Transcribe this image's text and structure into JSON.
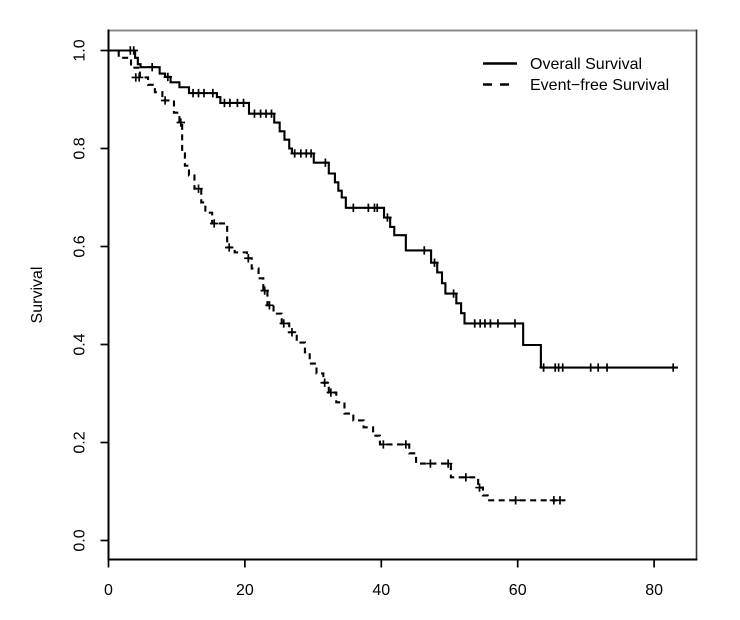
{
  "figure": {
    "background": "#ffffff",
    "ylabel": "Survival",
    "legend": {
      "position": "top-right",
      "items": [
        {
          "label": "Overall Survival",
          "style": "solid"
        },
        {
          "label": "Event−free Survival",
          "style": "dashed"
        }
      ]
    },
    "colors": {
      "curve": "#000000",
      "axis": "#000000",
      "box_top": "#8c8c8c",
      "box_right": "#333333",
      "background": "#ffffff"
    }
  },
  "chart_data": {
    "type": "line",
    "subtype": "kaplan-meier-step",
    "title": "",
    "xlabel": "",
    "ylabel": "Survival",
    "xlim": [
      0,
      86
    ],
    "ylim": [
      -0.04,
      1.04
    ],
    "grid": false,
    "legend_position": "top-right",
    "x_ticks": [
      {
        "label": "0",
        "value": 0
      },
      {
        "label": "20",
        "value": 20
      },
      {
        "label": "40",
        "value": 40
      },
      {
        "label": "60",
        "value": 60
      },
      {
        "label": "80",
        "value": 80
      }
    ],
    "y_ticks": [
      {
        "label": "0.0",
        "value": 0.0
      },
      {
        "label": "0.2",
        "value": 0.2
      },
      {
        "label": "0.4",
        "value": 0.4
      },
      {
        "label": "0.6",
        "value": 0.6
      },
      {
        "label": "0.8",
        "value": 0.8
      },
      {
        "label": "1.0",
        "value": 1.0
      }
    ],
    "series": [
      {
        "name": "Overall Survival",
        "line": "solid",
        "color": "#000000",
        "end_time": 83.5,
        "steps": [
          [
            0,
            1.0
          ],
          [
            3.9,
            0.985
          ],
          [
            4.3,
            0.972
          ],
          [
            4.7,
            0.966
          ],
          [
            7.5,
            0.953
          ],
          [
            8.3,
            0.946
          ],
          [
            9.1,
            0.935
          ],
          [
            10.4,
            0.925
          ],
          [
            11.8,
            0.913
          ],
          [
            15.9,
            0.905
          ],
          [
            16.4,
            0.893
          ],
          [
            20.6,
            0.871
          ],
          [
            24.3,
            0.853
          ],
          [
            25.1,
            0.835
          ],
          [
            25.8,
            0.818
          ],
          [
            26.5,
            0.8
          ],
          [
            26.9,
            0.79
          ],
          [
            30.1,
            0.771
          ],
          [
            32.3,
            0.749
          ],
          [
            33.2,
            0.731
          ],
          [
            33.7,
            0.714
          ],
          [
            34.2,
            0.7
          ],
          [
            34.8,
            0.679
          ],
          [
            40.4,
            0.659
          ],
          [
            41.3,
            0.64
          ],
          [
            41.9,
            0.623
          ],
          [
            43.6,
            0.592
          ],
          [
            47.3,
            0.567
          ],
          [
            48.2,
            0.547
          ],
          [
            48.9,
            0.525
          ],
          [
            49.4,
            0.504
          ],
          [
            51.0,
            0.484
          ],
          [
            51.7,
            0.464
          ],
          [
            52.2,
            0.443
          ],
          [
            60.8,
            0.399
          ],
          [
            63.4,
            0.353
          ]
        ],
        "censor_marks": [
          [
            3.2,
            1.0
          ],
          [
            3.7,
            1.0
          ],
          [
            6.4,
            0.966
          ],
          [
            8.7,
            0.946
          ],
          [
            12.4,
            0.913
          ],
          [
            13.2,
            0.913
          ],
          [
            14.0,
            0.913
          ],
          [
            15.3,
            0.913
          ],
          [
            17.0,
            0.893
          ],
          [
            17.8,
            0.893
          ],
          [
            18.9,
            0.893
          ],
          [
            19.8,
            0.893
          ],
          [
            21.4,
            0.871
          ],
          [
            22.3,
            0.871
          ],
          [
            23.1,
            0.871
          ],
          [
            23.9,
            0.871
          ],
          [
            27.3,
            0.79
          ],
          [
            28.2,
            0.79
          ],
          [
            29.0,
            0.79
          ],
          [
            29.7,
            0.79
          ],
          [
            31.8,
            0.771
          ],
          [
            35.9,
            0.679
          ],
          [
            38.1,
            0.679
          ],
          [
            39.0,
            0.679
          ],
          [
            39.4,
            0.679
          ],
          [
            40.9,
            0.659
          ],
          [
            46.3,
            0.592
          ],
          [
            47.8,
            0.567
          ],
          [
            50.6,
            0.504
          ],
          [
            53.7,
            0.443
          ],
          [
            54.5,
            0.443
          ],
          [
            55.2,
            0.443
          ],
          [
            56.0,
            0.443
          ],
          [
            57.1,
            0.443
          ],
          [
            59.6,
            0.443
          ],
          [
            63.8,
            0.353
          ],
          [
            65.5,
            0.353
          ],
          [
            66.0,
            0.353
          ],
          [
            66.6,
            0.353
          ],
          [
            70.7,
            0.353
          ],
          [
            71.8,
            0.353
          ],
          [
            73.1,
            0.353
          ],
          [
            82.8,
            0.353
          ]
        ]
      },
      {
        "name": "Event−free Survival",
        "line": "dashed",
        "color": "#000000",
        "end_time": 67,
        "steps": [
          [
            0,
            1.0
          ],
          [
            1.5,
            0.985
          ],
          [
            3.3,
            0.965
          ],
          [
            4.6,
            0.945
          ],
          [
            5.8,
            0.93
          ],
          [
            6.8,
            0.915
          ],
          [
            7.9,
            0.898
          ],
          [
            9.6,
            0.873
          ],
          [
            10.4,
            0.853
          ],
          [
            10.8,
            0.79
          ],
          [
            11.2,
            0.765
          ],
          [
            11.8,
            0.745
          ],
          [
            12.6,
            0.718
          ],
          [
            13.6,
            0.69
          ],
          [
            14.2,
            0.669
          ],
          [
            15.2,
            0.647
          ],
          [
            17.4,
            0.598
          ],
          [
            18.5,
            0.588
          ],
          [
            20.3,
            0.576
          ],
          [
            21.0,
            0.555
          ],
          [
            22.0,
            0.535
          ],
          [
            22.7,
            0.51
          ],
          [
            23.3,
            0.48
          ],
          [
            24.2,
            0.463
          ],
          [
            25.4,
            0.443
          ],
          [
            26.5,
            0.425
          ],
          [
            27.6,
            0.404
          ],
          [
            28.8,
            0.384
          ],
          [
            29.5,
            0.361
          ],
          [
            30.5,
            0.341
          ],
          [
            31.5,
            0.322
          ],
          [
            32.3,
            0.302
          ],
          [
            33.4,
            0.282
          ],
          [
            34.6,
            0.259
          ],
          [
            35.9,
            0.245
          ],
          [
            37.4,
            0.231
          ],
          [
            38.8,
            0.214
          ],
          [
            39.8,
            0.196
          ],
          [
            44.1,
            0.178
          ],
          [
            45.1,
            0.157
          ],
          [
            50.2,
            0.129
          ],
          [
            54.2,
            0.108
          ],
          [
            54.9,
            0.092
          ],
          [
            55.6,
            0.082
          ]
        ],
        "censor_marks": [
          [
            4.0,
            0.945
          ],
          [
            4.5,
            0.945
          ],
          [
            8.3,
            0.898
          ],
          [
            10.6,
            0.853
          ],
          [
            13.2,
            0.718
          ],
          [
            15.5,
            0.647
          ],
          [
            17.7,
            0.598
          ],
          [
            20.5,
            0.576
          ],
          [
            22.9,
            0.51
          ],
          [
            23.6,
            0.48
          ],
          [
            25.7,
            0.443
          ],
          [
            26.9,
            0.425
          ],
          [
            31.7,
            0.322
          ],
          [
            32.6,
            0.302
          ],
          [
            40.3,
            0.196
          ],
          [
            43.6,
            0.196
          ],
          [
            47.2,
            0.157
          ],
          [
            49.8,
            0.157
          ],
          [
            52.4,
            0.129
          ],
          [
            54.4,
            0.108
          ],
          [
            59.7,
            0.082
          ],
          [
            65.3,
            0.082
          ],
          [
            66.2,
            0.082
          ]
        ]
      }
    ]
  }
}
